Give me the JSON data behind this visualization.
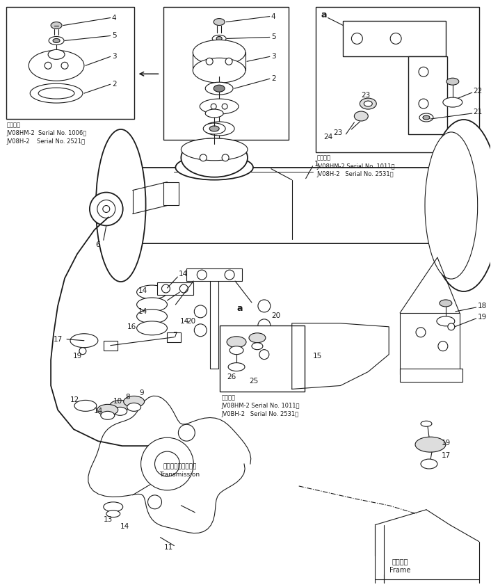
{
  "bg": "#ffffff",
  "lc": "#1a1a1a",
  "fw": 7.06,
  "fh": 8.44,
  "dpi": 100,
  "serial1": "適用号機\nJV08HM-2  Serial No. 1006～\nJV08H-2    Serial No. 2521～",
  "serial2": "適用号機\nJV08HM-2 Serial No. 1011～\nJV08H-2   Serial No. 2531～",
  "serial3": "適用号機\nJV08HM-2 Serial No. 1011～\nJV0BH-2   Serial No. 2531～",
  "trans_lbl": "トランスミッション\nTransmission",
  "frame_lbl": "フレーム\nFrame"
}
